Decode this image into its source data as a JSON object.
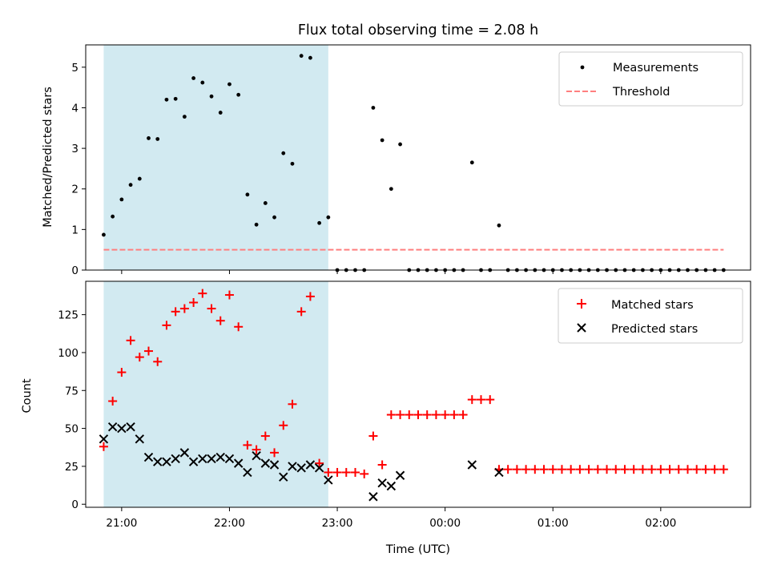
{
  "chart_data": [
    {
      "type": "scatter",
      "title": "Flux total observing time = 2.08 h",
      "xlabel": "",
      "ylabel": "Matched/Predicted stars",
      "xlim": [
        "20:40",
        "02:50"
      ],
      "ylim": [
        0,
        5.55
      ],
      "y_ticks": [
        "0",
        "1",
        "2",
        "3",
        "4",
        "5"
      ],
      "shaded_region": {
        "x_start": "20:50",
        "x_end": "22:55",
        "color": "#add8e6"
      },
      "legend": {
        "position": "upper-right",
        "entries": [
          "Measurements",
          "Threshold"
        ]
      },
      "series": [
        {
          "name": "Measurements",
          "color": "#000000",
          "marker": "dot",
          "x": [
            "20:50",
            "20:55",
            "21:00",
            "21:05",
            "21:10",
            "21:15",
            "21:20",
            "21:25",
            "21:30",
            "21:35",
            "21:40",
            "21:45",
            "21:50",
            "21:55",
            "22:00",
            "22:05",
            "22:10",
            "22:15",
            "22:20",
            "22:25",
            "22:30",
            "22:35",
            "22:40",
            "22:45",
            "22:50",
            "22:55",
            "23:00",
            "23:05",
            "23:10",
            "23:15",
            "23:20",
            "23:25",
            "23:30",
            "23:35",
            "23:40",
            "23:45",
            "23:50",
            "23:55",
            "00:00",
            "00:05",
            "00:10",
            "00:15",
            "00:20",
            "00:25",
            "00:30",
            "00:35",
            "00:40",
            "00:45",
            "00:50",
            "00:55",
            "01:00",
            "01:05",
            "01:10",
            "01:15",
            "01:20",
            "01:25",
            "01:30",
            "01:35",
            "01:40",
            "01:45",
            "01:50",
            "01:55",
            "02:00",
            "02:05",
            "02:10",
            "02:15",
            "02:20",
            "02:25",
            "02:30",
            "02:35"
          ],
          "y": [
            0.87,
            1.32,
            1.74,
            2.1,
            2.25,
            3.25,
            3.23,
            4.2,
            4.22,
            3.78,
            4.73,
            4.62,
            4.28,
            3.88,
            4.58,
            4.32,
            1.86,
            1.12,
            1.65,
            1.3,
            2.88,
            2.62,
            5.28,
            5.23,
            1.16,
            1.3,
            0,
            0,
            0,
            0.0,
            4.0,
            3.2,
            2.0,
            3.1,
            0,
            0,
            0,
            0,
            0,
            0,
            0,
            2.65,
            0,
            0,
            1.1,
            0,
            0,
            0,
            0,
            0,
            0,
            0,
            0,
            0,
            0,
            0,
            0,
            0,
            0,
            0,
            0,
            0,
            0,
            0,
            0,
            0,
            0,
            0,
            0,
            0
          ]
        },
        {
          "name": "Threshold",
          "color": "#ff7f7f",
          "style": "dashed",
          "x": [
            "20:50",
            "02:35"
          ],
          "y": [
            0.5,
            0.5
          ]
        }
      ]
    },
    {
      "type": "scatter",
      "title": "",
      "xlabel": "Time (UTC)",
      "ylabel": "Count",
      "xlim": [
        "20:40",
        "02:50"
      ],
      "ylim": [
        -2,
        147
      ],
      "x_ticks": [
        "21:00",
        "22:00",
        "23:00",
        "00:00",
        "01:00",
        "02:00"
      ],
      "y_ticks": [
        "0",
        "25",
        "50",
        "75",
        "100",
        "125"
      ],
      "shaded_region": {
        "x_start": "20:50",
        "x_end": "22:55",
        "color": "#add8e6"
      },
      "legend": {
        "position": "upper-right",
        "entries": [
          "Matched stars",
          "Predicted stars"
        ]
      },
      "series": [
        {
          "name": "Matched stars",
          "color": "#ff0000",
          "marker": "plus",
          "x": [
            "20:50",
            "20:55",
            "21:00",
            "21:05",
            "21:10",
            "21:15",
            "21:20",
            "21:25",
            "21:30",
            "21:35",
            "21:40",
            "21:45",
            "21:50",
            "21:55",
            "22:00",
            "22:05",
            "22:10",
            "22:15",
            "22:20",
            "22:25",
            "22:30",
            "22:35",
            "22:40",
            "22:45",
            "22:50",
            "22:55",
            "23:00",
            "23:05",
            "23:10",
            "23:15",
            "23:20",
            "23:25",
            "23:30",
            "23:35",
            "23:40",
            "23:45",
            "23:50",
            "23:55",
            "00:00",
            "00:05",
            "00:10",
            "00:15",
            "00:20",
            "00:25",
            "00:30",
            "00:35",
            "00:40",
            "00:45",
            "00:50",
            "00:55",
            "01:00",
            "01:05",
            "01:10",
            "01:15",
            "01:20",
            "01:25",
            "01:30",
            "01:35",
            "01:40",
            "01:45",
            "01:50",
            "01:55",
            "02:00",
            "02:05",
            "02:10",
            "02:15",
            "02:20",
            "02:25",
            "02:30",
            "02:35"
          ],
          "y": [
            38,
            68,
            87,
            108,
            97,
            101,
            94,
            118,
            127,
            129,
            133,
            139,
            129,
            121,
            138,
            117,
            39,
            36,
            45,
            34,
            52,
            66,
            127,
            137,
            27,
            21,
            21,
            21,
            21,
            20,
            45,
            26,
            59,
            59,
            59,
            59,
            59,
            59,
            59,
            59,
            59,
            69,
            69,
            69,
            23,
            23,
            23,
            23,
            23,
            23,
            23,
            23,
            23,
            23,
            23,
            23,
            23,
            23,
            23,
            23,
            23,
            23,
            23,
            23,
            23,
            23,
            23,
            23,
            23,
            23
          ]
        },
        {
          "name": "Predicted stars",
          "color": "#000000",
          "marker": "x",
          "x": [
            "20:50",
            "20:55",
            "21:00",
            "21:05",
            "21:10",
            "21:15",
            "21:20",
            "21:25",
            "21:30",
            "21:35",
            "21:40",
            "21:45",
            "21:50",
            "21:55",
            "22:00",
            "22:05",
            "22:10",
            "22:15",
            "22:20",
            "22:25",
            "22:30",
            "22:35",
            "22:40",
            "22:45",
            "22:50",
            "22:55",
            "23:20",
            "23:25",
            "23:30",
            "23:35",
            "00:15",
            "00:30"
          ],
          "y": [
            43,
            51,
            50,
            51,
            43,
            31,
            28,
            28,
            30,
            34,
            28,
            30,
            30,
            31,
            30,
            27,
            21,
            32,
            27,
            26,
            18,
            25,
            24,
            26,
            24,
            16,
            5,
            14,
            12,
            19,
            26,
            21
          ]
        }
      ]
    }
  ]
}
